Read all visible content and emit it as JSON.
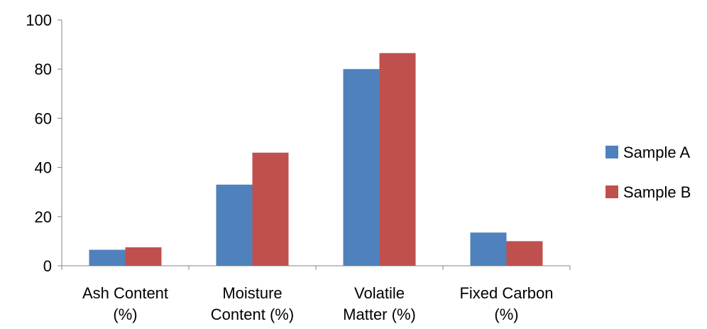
{
  "chart_data": {
    "type": "bar",
    "categories": [
      [
        "Ash Content",
        "(%)"
      ],
      [
        "Moisture",
        "Content (%)"
      ],
      [
        "Volatile",
        "Matter (%)"
      ],
      [
        "Fixed Carbon",
        "(%)"
      ]
    ],
    "series": [
      {
        "name": "Sample A",
        "color": "#4F81BD",
        "values": [
          6.5,
          33,
          80,
          13.5
        ]
      },
      {
        "name": "Sample B",
        "color": "#C0504D",
        "values": [
          7.5,
          46,
          86.5,
          10
        ]
      }
    ],
    "ylim": [
      0,
      100
    ],
    "yticks": [
      0,
      20,
      40,
      60,
      80,
      100
    ],
    "grid": false,
    "legend": "right"
  }
}
